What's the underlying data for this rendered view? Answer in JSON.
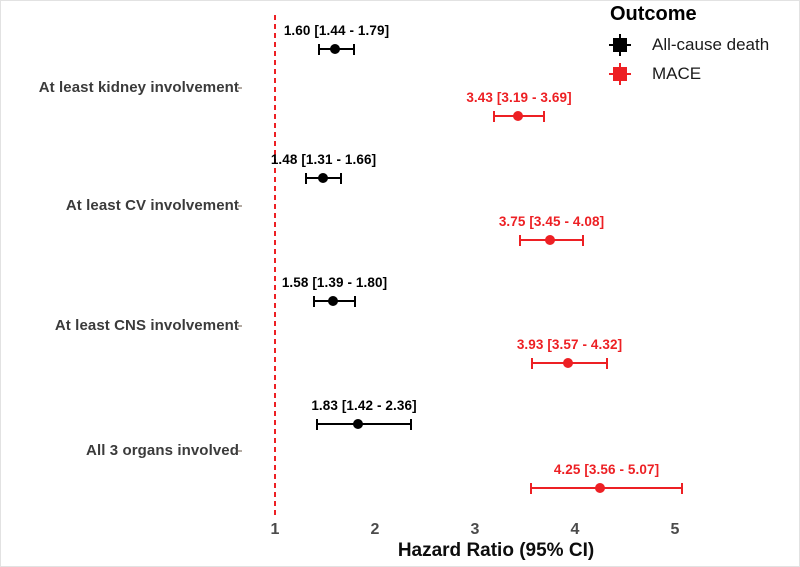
{
  "chart_data": {
    "type": "scatter",
    "variant": "forest-plot",
    "title": "",
    "xlabel": "Hazard Ratio (95% CI)",
    "ylabel": "",
    "xlim": [
      1,
      5.2
    ],
    "x_ticks": [
      "1",
      "2",
      "3",
      "4",
      "5"
    ],
    "grid": "off",
    "reference_line": {
      "x": 1,
      "style": "dashed",
      "color": "#ED2024"
    },
    "legend": {
      "title": "Outcome",
      "position": "top-right",
      "entries": [
        {
          "label": "All-cause death",
          "color": "#000000"
        },
        {
          "label": "MACE",
          "color": "#ED2024"
        }
      ]
    },
    "categories": [
      "At least kidney involvement",
      "At least CV involvement",
      "At least CNS involvement",
      "All 3 organs involved"
    ],
    "series": [
      {
        "name": "All-cause death",
        "color": "#000000",
        "values": [
          {
            "category": "At least kidney involvement",
            "estimate": 1.6,
            "lower": 1.44,
            "upper": 1.79,
            "label": "1.60 [1.44 - 1.79]"
          },
          {
            "category": "At least CV involvement",
            "estimate": 1.48,
            "lower": 1.31,
            "upper": 1.66,
            "label": "1.48 [1.31 - 1.66]"
          },
          {
            "category": "At least CNS involvement",
            "estimate": 1.58,
            "lower": 1.39,
            "upper": 1.8,
            "label": "1.58 [1.39 - 1.80]"
          },
          {
            "category": "All 3 organs involved",
            "estimate": 1.83,
            "lower": 1.42,
            "upper": 2.36,
            "label": "1.83 [1.42 - 2.36]"
          }
        ]
      },
      {
        "name": "MACE",
        "color": "#ED2024",
        "values": [
          {
            "category": "At least kidney involvement",
            "estimate": 3.43,
            "lower": 3.19,
            "upper": 3.69,
            "label": "3.43 [3.19 - 3.69]"
          },
          {
            "category": "At least CV involvement",
            "estimate": 3.75,
            "lower": 3.45,
            "upper": 4.08,
            "label": "3.75 [3.45 - 4.08]"
          },
          {
            "category": "At least CNS involvement",
            "estimate": 3.93,
            "lower": 3.57,
            "upper": 4.32,
            "label": "3.93 [3.57 - 4.32]"
          },
          {
            "category": "All 3 organs involved",
            "estimate": 4.25,
            "lower": 3.56,
            "upper": 5.07,
            "label": "4.25 [3.56 - 5.07]"
          }
        ]
      }
    ]
  }
}
